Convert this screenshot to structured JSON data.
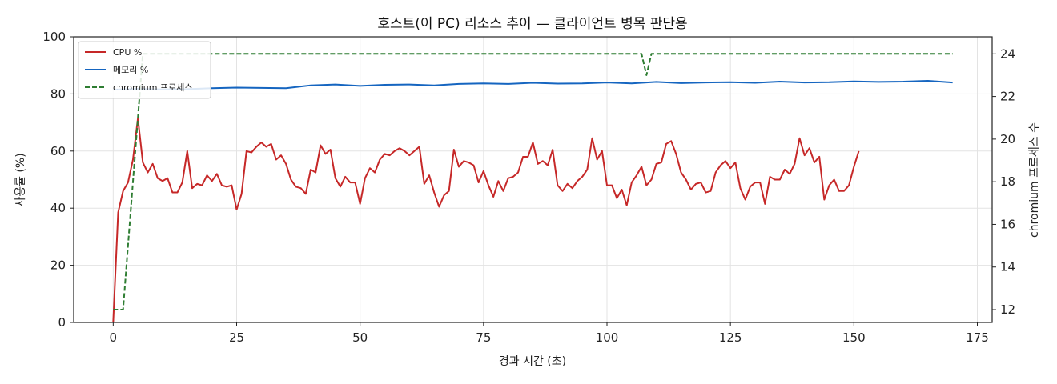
{
  "chart_data": {
    "type": "line",
    "title": "호스트(이 PC) 리소스 추이 — 클라이언트 병목 판단용",
    "xlabel": "경과 시간 (초)",
    "ylabel": "사용률 (%)",
    "y2label": "chromium 프로세스 수",
    "xlim": [
      -8,
      178
    ],
    "ylim": [
      0,
      100
    ],
    "y2lim": [
      11.4,
      24.8
    ],
    "x_ticks": [
      0,
      25,
      50,
      75,
      100,
      125,
      150,
      175
    ],
    "y_ticks": [
      0,
      20,
      40,
      60,
      80,
      100
    ],
    "y2_ticks": [
      12,
      14,
      16,
      18,
      20,
      22,
      24
    ],
    "grid": true,
    "legend_position": "top-left",
    "series": [
      {
        "name": "CPU %",
        "axis": "left",
        "color": "#c62828",
        "style": "solid",
        "points": [
          [
            0,
            0
          ],
          [
            1,
            38.5
          ],
          [
            2,
            46
          ],
          [
            3,
            49
          ],
          [
            4,
            57
          ],
          [
            5,
            71.5
          ],
          [
            6,
            56
          ],
          [
            7,
            52.5
          ],
          [
            8,
            55.5
          ],
          [
            9,
            50.5
          ],
          [
            10,
            49.5
          ],
          [
            11,
            50.5
          ],
          [
            12,
            45.5
          ],
          [
            13,
            45.5
          ],
          [
            14,
            49
          ],
          [
            15,
            60
          ],
          [
            16,
            47
          ],
          [
            17,
            48.5
          ],
          [
            18,
            48
          ],
          [
            19,
            51.5
          ],
          [
            20,
            49.5
          ],
          [
            21,
            52
          ],
          [
            22,
            48
          ],
          [
            23,
            47.5
          ],
          [
            24,
            48
          ],
          [
            25,
            39.5
          ],
          [
            26,
            45
          ],
          [
            27,
            60
          ],
          [
            28,
            59.5
          ],
          [
            29,
            61.5
          ],
          [
            30,
            63
          ],
          [
            31,
            61.5
          ],
          [
            32,
            62.5
          ],
          [
            33,
            57
          ],
          [
            34,
            58.5
          ],
          [
            35,
            55.5
          ],
          [
            36,
            50
          ],
          [
            37,
            47.5
          ],
          [
            38,
            47
          ],
          [
            39,
            45
          ],
          [
            40,
            53.5
          ],
          [
            41,
            52.5
          ],
          [
            42,
            62
          ],
          [
            43,
            59
          ],
          [
            44,
            60.5
          ],
          [
            45,
            50.5
          ],
          [
            46,
            47.5
          ],
          [
            47,
            51
          ],
          [
            48,
            49
          ],
          [
            49,
            49
          ],
          [
            50,
            41.5
          ],
          [
            51,
            50.5
          ],
          [
            52,
            54
          ],
          [
            53,
            52.5
          ],
          [
            54,
            57
          ],
          [
            55,
            59
          ],
          [
            56,
            58.5
          ],
          [
            57,
            60
          ],
          [
            58,
            61
          ],
          [
            59,
            60
          ],
          [
            60,
            58.5
          ],
          [
            61,
            60
          ],
          [
            62,
            61.5
          ],
          [
            63,
            48.5
          ],
          [
            64,
            51.5
          ],
          [
            65,
            45.5
          ],
          [
            66,
            40.5
          ],
          [
            67,
            44.5
          ],
          [
            68,
            46
          ],
          [
            69,
            60.5
          ],
          [
            70,
            54.5
          ],
          [
            71,
            56.5
          ],
          [
            72,
            56
          ],
          [
            73,
            55
          ],
          [
            74,
            49
          ],
          [
            75,
            53
          ],
          [
            76,
            48
          ],
          [
            77,
            44
          ],
          [
            78,
            49.5
          ],
          [
            79,
            46
          ],
          [
            80,
            50.5
          ],
          [
            81,
            51
          ],
          [
            82,
            52.5
          ],
          [
            83,
            58
          ],
          [
            84,
            58
          ],
          [
            85,
            63
          ],
          [
            86,
            55.5
          ],
          [
            87,
            56.5
          ],
          [
            88,
            55
          ],
          [
            89,
            60.5
          ],
          [
            90,
            48
          ],
          [
            91,
            46
          ],
          [
            92,
            48.5
          ],
          [
            93,
            47
          ],
          [
            94,
            49.5
          ],
          [
            95,
            51
          ],
          [
            96,
            53.5
          ],
          [
            97,
            64.5
          ],
          [
            98,
            57
          ],
          [
            99,
            60
          ],
          [
            100,
            48
          ],
          [
            101,
            48
          ],
          [
            102,
            43.5
          ],
          [
            103,
            46.5
          ],
          [
            104,
            41
          ],
          [
            105,
            49
          ],
          [
            106,
            51.5
          ],
          [
            107,
            54.5
          ],
          [
            108,
            48
          ],
          [
            109,
            50
          ],
          [
            110,
            55.5
          ],
          [
            111,
            56
          ],
          [
            112,
            62.5
          ],
          [
            113,
            63.5
          ],
          [
            114,
            59
          ],
          [
            115,
            52.5
          ],
          [
            116,
            50
          ],
          [
            117,
            46.5
          ],
          [
            118,
            48.5
          ],
          [
            119,
            49
          ],
          [
            120,
            45.5
          ],
          [
            121,
            46
          ],
          [
            122,
            52.5
          ],
          [
            123,
            55
          ],
          [
            124,
            56.5
          ],
          [
            125,
            54
          ],
          [
            126,
            56
          ],
          [
            127,
            47
          ],
          [
            128,
            43
          ],
          [
            129,
            47.5
          ],
          [
            130,
            49
          ],
          [
            131,
            49
          ],
          [
            132,
            41.5
          ],
          [
            133,
            51
          ],
          [
            134,
            50
          ],
          [
            135,
            50
          ],
          [
            136,
            53.5
          ],
          [
            137,
            52
          ],
          [
            138,
            55.5
          ],
          [
            139,
            64.5
          ],
          [
            140,
            58.5
          ],
          [
            141,
            61
          ],
          [
            142,
            56
          ],
          [
            143,
            58
          ],
          [
            144,
            43
          ],
          [
            145,
            48
          ],
          [
            146,
            50
          ],
          [
            147,
            46
          ],
          [
            148,
            46
          ],
          [
            149,
            48
          ],
          [
            150,
            54.5
          ],
          [
            151,
            60
          ]
        ]
      },
      {
        "name": "메모리 %",
        "axis": "left",
        "color": "#1565c0",
        "style": "solid",
        "points": [
          [
            0,
            81.5
          ],
          [
            5,
            81.8
          ],
          [
            10,
            81.6
          ],
          [
            15,
            81.7
          ],
          [
            20,
            82
          ],
          [
            25,
            82.2
          ],
          [
            30,
            82.1
          ],
          [
            35,
            82
          ],
          [
            40,
            83
          ],
          [
            45,
            83.3
          ],
          [
            50,
            82.8
          ],
          [
            55,
            83.2
          ],
          [
            60,
            83.3
          ],
          [
            65,
            83
          ],
          [
            70,
            83.5
          ],
          [
            75,
            83.7
          ],
          [
            80,
            83.5
          ],
          [
            85,
            83.9
          ],
          [
            90,
            83.6
          ],
          [
            95,
            83.7
          ],
          [
            100,
            84
          ],
          [
            105,
            83.7
          ],
          [
            108,
            84
          ],
          [
            110,
            84.2
          ],
          [
            115,
            83.8
          ],
          [
            120,
            84
          ],
          [
            125,
            84.1
          ],
          [
            130,
            83.9
          ],
          [
            135,
            84.3
          ],
          [
            140,
            84
          ],
          [
            145,
            84.1
          ],
          [
            150,
            84.4
          ],
          [
            155,
            84.2
          ],
          [
            160,
            84.3
          ],
          [
            165,
            84.6
          ],
          [
            170,
            84
          ]
        ]
      },
      {
        "name": "chromium 프로세스",
        "axis": "right",
        "color": "#2e7d32",
        "style": "dashed",
        "points": [
          [
            0,
            12
          ],
          [
            2,
            12
          ],
          [
            6,
            24
          ],
          [
            107,
            24
          ],
          [
            108,
            23
          ],
          [
            109,
            24
          ],
          [
            170,
            24
          ]
        ]
      }
    ]
  }
}
